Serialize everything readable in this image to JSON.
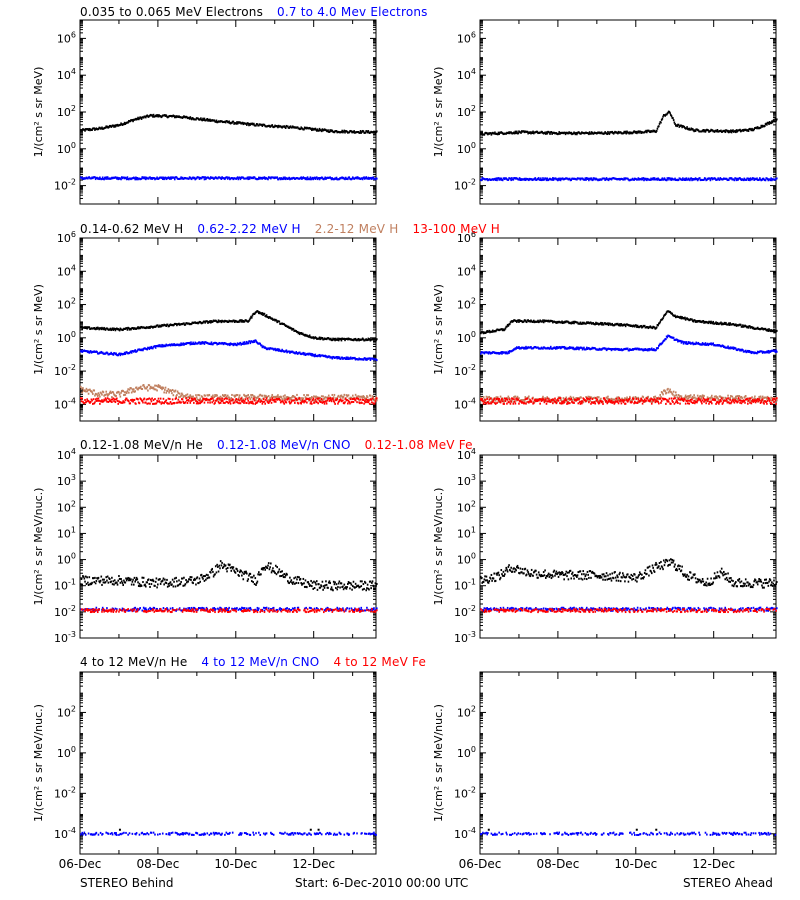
{
  "colors": {
    "black": "#000000",
    "blue": "#0000ff",
    "tan": "#c08060",
    "red": "#ff0000"
  },
  "chart_data": {
    "type": "scatter",
    "x_ticks": [
      "06-Dec",
      "08-Dec",
      "10-Dec",
      "12-Dec"
    ],
    "x_range_days": [
      0,
      7.6
    ],
    "footer": {
      "left": "STEREO Behind",
      "center": "Start:  6-Dec-2010 00:00 UTC",
      "right": "STEREO Ahead"
    },
    "rows": [
      {
        "ylabel": "1/(cm² s sr MeV)",
        "ylim_log10": [
          -3,
          7
        ],
        "ytick_exponents": [
          -2,
          0,
          2,
          4,
          6
        ],
        "legend": [
          {
            "name": "0.035 to 0.065 MeV Electrons",
            "color": "black"
          },
          {
            "name": "0.7 to 4.0 Mev Electrons",
            "color": "blue"
          }
        ],
        "behind": [
          {
            "name": "0.035 to 0.065 MeV Electrons",
            "color": "black",
            "x_days": [
              0,
              0.5,
              1,
              1.4,
              1.8,
              2.5,
              3.5,
              4.5,
              5.5,
              6.5,
              7.6
            ],
            "log10": [
              1.0,
              1.1,
              1.3,
              1.6,
              1.8,
              1.75,
              1.5,
              1.3,
              1.15,
              0.95,
              0.9
            ]
          },
          {
            "name": "0.7 to 4.0 Mev Electrons",
            "color": "blue",
            "x_days": [
              0,
              7.6
            ],
            "log10": [
              -1.6,
              -1.6
            ]
          }
        ],
        "ahead": [
          {
            "name": "0.035 to 0.065 MeV Electrons",
            "color": "black",
            "x_days": [
              0,
              1,
              2,
              3,
              4,
              4.5,
              4.7,
              4.85,
              5.0,
              5.5,
              6.5,
              7.0,
              7.3,
              7.6
            ],
            "log10": [
              0.8,
              0.9,
              0.85,
              0.85,
              0.9,
              0.95,
              1.8,
              2.0,
              1.3,
              1.0,
              0.95,
              1.05,
              1.3,
              1.6
            ]
          },
          {
            "name": "0.7 to 4.0 Mev Electrons",
            "color": "blue",
            "x_days": [
              0,
              7.6
            ],
            "log10": [
              -1.65,
              -1.65
            ]
          }
        ]
      },
      {
        "ylabel": "1/(cm² s sr MeV)",
        "ylim_log10": [
          -5,
          6
        ],
        "ytick_exponents": [
          -4,
          -2,
          0,
          2,
          4,
          6
        ],
        "legend": [
          {
            "name": "0.14-0.62 MeV H",
            "color": "black"
          },
          {
            "name": "0.62-2.22 MeV H",
            "color": "blue"
          },
          {
            "name": "2.2-12 MeV H",
            "color": "tan"
          },
          {
            "name": "13-100 MeV H",
            "color": "red"
          }
        ],
        "behind": [
          {
            "name": "0.14-0.62 MeV H",
            "color": "black",
            "x_days": [
              0,
              1,
              2,
              3,
              3.5,
              4,
              4.3,
              4.5,
              4.7,
              5.2,
              5.6,
              6.0,
              6.5,
              7.6
            ],
            "log10": [
              0.6,
              0.5,
              0.7,
              0.9,
              1.0,
              1.0,
              1.0,
              1.6,
              1.4,
              0.8,
              0.3,
              0.0,
              -0.1,
              -0.1
            ]
          },
          {
            "name": "0.62-2.22 MeV H",
            "color": "blue",
            "x_days": [
              0,
              1,
              2,
              3,
              4,
              4.5,
              4.7,
              5.5,
              6.5,
              7.6
            ],
            "log10": [
              -0.8,
              -1.0,
              -0.5,
              -0.3,
              -0.4,
              -0.2,
              -0.6,
              -0.9,
              -1.2,
              -1.3
            ]
          },
          {
            "name": "2.2-12 MeV H",
            "color": "tan",
            "x_days": [
              0,
              0.5,
              1,
              1.5,
              2,
              2.5,
              3,
              7.6
            ],
            "log10": [
              -3.1,
              -3.4,
              -3.4,
              -3.0,
              -3.0,
              -3.4,
              -3.6,
              -3.6
            ]
          },
          {
            "name": "13-100 MeV H",
            "color": "red",
            "x_days": [
              0,
              7.6
            ],
            "log10": [
              -3.8,
              -3.8
            ]
          }
        ],
        "ahead": [
          {
            "name": "0.14-0.62 MeV H",
            "color": "black",
            "x_days": [
              0,
              0.6,
              0.8,
              1.5,
              2.5,
              3.5,
              4.5,
              4.8,
              5.0,
              5.5,
              6.5,
              7.0,
              7.6
            ],
            "log10": [
              0.3,
              0.5,
              1.0,
              1.0,
              0.9,
              0.8,
              0.6,
              1.6,
              1.3,
              1.0,
              0.8,
              0.6,
              0.4
            ]
          },
          {
            "name": "0.62-2.22 MeV H",
            "color": "blue",
            "x_days": [
              0,
              0.7,
              0.9,
              2,
              3.5,
              4.5,
              4.8,
              5.2,
              6.0,
              7.0,
              7.6
            ],
            "log10": [
              -0.9,
              -0.9,
              -0.6,
              -0.6,
              -0.7,
              -0.7,
              0.1,
              -0.3,
              -0.4,
              -0.9,
              -0.8
            ]
          },
          {
            "name": "2.2-12 MeV H",
            "color": "tan",
            "x_days": [
              0,
              4.5,
              4.8,
              5.1,
              7.6
            ],
            "log10": [
              -3.7,
              -3.7,
              -3.1,
              -3.6,
              -3.7
            ]
          },
          {
            "name": "13-100 MeV H",
            "color": "red",
            "x_days": [
              0,
              7.6
            ],
            "log10": [
              -3.8,
              -3.8
            ]
          }
        ]
      },
      {
        "ylabel": "1/(cm² s sr MeV/nuc.)",
        "ylim_log10": [
          -3,
          4
        ],
        "ytick_exponents": [
          -3,
          -2,
          -1,
          0,
          1,
          2,
          3,
          4
        ],
        "legend": [
          {
            "name": "0.12-1.08 MeV/n He",
            "color": "black"
          },
          {
            "name": "0.12-1.08 MeV/n CNO",
            "color": "blue"
          },
          {
            "name": "0.12-1.08 MeV Fe",
            "color": "red"
          }
        ],
        "behind": [
          {
            "name": "0.12-1.08 MeV/n He",
            "color": "black",
            "x_days": [
              0,
              1,
              2,
              3,
              3.4,
              3.6,
              3.9,
              4.2,
              4.5,
              4.7,
              5.0,
              5.3,
              5.7,
              6.0,
              7.6
            ],
            "log10": [
              -0.8,
              -0.8,
              -0.9,
              -0.8,
              -0.5,
              -0.2,
              -0.4,
              -0.6,
              -0.8,
              -0.2,
              -0.4,
              -0.7,
              -0.9,
              -1.0,
              -1.0
            ]
          },
          {
            "name": "0.12-1.08 MeV/n CNO",
            "color": "blue",
            "x_days": [
              0,
              7.6
            ],
            "log10": [
              -1.9,
              -1.9
            ]
          },
          {
            "name": "0.12-1.08 MeV Fe",
            "color": "red",
            "x_days": [
              0,
              7.6
            ],
            "log10": [
              -1.95,
              -1.95
            ]
          }
        ],
        "ahead": [
          {
            "name": "0.12-1.08 MeV/n He",
            "color": "black",
            "x_days": [
              0,
              0.5,
              0.8,
              1.2,
              2,
              3,
              4,
              4.5,
              4.9,
              5.3,
              5.8,
              6.2,
              6.5,
              7.6
            ],
            "log10": [
              -0.8,
              -0.6,
              -0.3,
              -0.5,
              -0.6,
              -0.6,
              -0.7,
              -0.3,
              -0.1,
              -0.6,
              -0.9,
              -0.5,
              -0.9,
              -0.9
            ]
          },
          {
            "name": "0.12-1.08 MeV/n CNO",
            "color": "blue",
            "x_days": [
              0,
              7.6
            ],
            "log10": [
              -1.9,
              -1.9
            ]
          },
          {
            "name": "0.12-1.08 MeV Fe",
            "color": "red",
            "x_days": [
              0,
              7.6
            ],
            "log10": [
              -1.95,
              -1.95
            ]
          }
        ]
      },
      {
        "ylabel": "1/(cm² s sr MeV/nuc.)",
        "ylim_log10": [
          -5,
          4
        ],
        "ytick_exponents": [
          -4,
          -2,
          0,
          2
        ],
        "legend": [
          {
            "name": "4 to 12 MeV/n He",
            "color": "black"
          },
          {
            "name": "4 to 12 MeV/n CNO",
            "color": "blue"
          },
          {
            "name": "4 to 12 MeV Fe",
            "color": "red"
          }
        ],
        "behind": [
          {
            "name": "4 to 12 MeV/n CNO",
            "color": "blue",
            "x_days": [
              0,
              7.6
            ],
            "log10": [
              -4.0,
              -4.0
            ]
          },
          {
            "name": "4 to 12 MeV/n He",
            "color": "black",
            "x_days": [
              1.0,
              5.9,
              6.1
            ],
            "log10": [
              -3.8,
              -3.8,
              -3.8
            ]
          }
        ],
        "ahead": [
          {
            "name": "4 to 12 MeV/n CNO",
            "color": "blue",
            "x_days": [
              0,
              7.6
            ],
            "log10": [
              -4.0,
              -4.0
            ]
          },
          {
            "name": "4 to 12 MeV/n He",
            "color": "black",
            "x_days": [
              0.2,
              4.0,
              4.5
            ],
            "log10": [
              -3.8,
              -3.8,
              -3.8
            ]
          }
        ]
      }
    ]
  }
}
